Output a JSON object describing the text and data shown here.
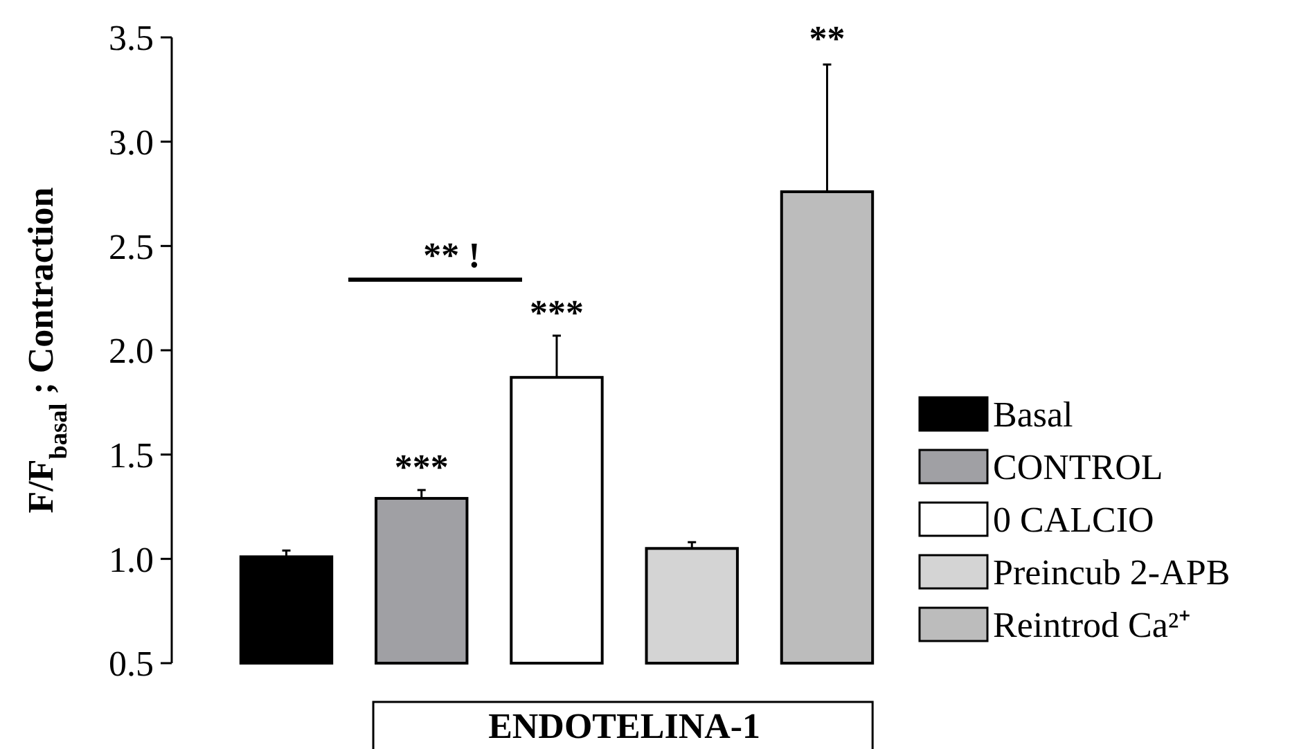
{
  "chart_data": {
    "type": "bar",
    "ylabel": "F/F$_{basal}$ ; Contraction",
    "categories": [
      null,
      null,
      null,
      null,
      null
    ],
    "stacked": true,
    "series": [
      {
        "name": "Basal",
        "color": "#000000",
        "values": [
          1.01,
          null,
          null,
          null,
          null
        ],
        "errors": [
          [
            1.01,
            1.04
          ],
          null,
          null,
          null,
          null
        ]
      },
      {
        "name": "CONTROL",
        "color": "#a0a0a4",
        "values": [
          null,
          1.29,
          null,
          null,
          null
        ],
        "errors": [
          null,
          [
            1.29,
            1.33
          ],
          null,
          null,
          null
        ]
      },
      {
        "name": "0 CALCIO",
        "color": "#ffffff",
        "values": [
          null,
          null,
          1.87,
          null,
          null
        ],
        "errors": [
          null,
          null,
          [
            1.87,
            2.07
          ],
          null,
          null
        ]
      },
      {
        "name": "Preincub 2-APB",
        "color": "#d4d4d4",
        "values": [
          null,
          null,
          null,
          1.05,
          null
        ],
        "errors": [
          null,
          null,
          null,
          [
            1.05,
            1.08
          ],
          null
        ]
      },
      {
        "name": "Reintrod Ca²⁺",
        "color": "#bcbcbc",
        "values": [
          null,
          null,
          null,
          null,
          2.76
        ],
        "errors": [
          null,
          null,
          null,
          null,
          [
            2.76,
            3.37
          ]
        ]
      }
    ],
    "ylim": [
      0.5,
      3.5
    ],
    "yticks": [
      {
        "value": 0.5,
        "label": "0.5"
      },
      {
        "value": 1.0,
        "label": "1.0"
      },
      {
        "value": 1.5,
        "label": "1.5"
      },
      {
        "value": 2.0,
        "label": "2.0"
      },
      {
        "value": 2.5,
        "label": "2.5"
      },
      {
        "value": 3.0,
        "label": "3.0"
      },
      {
        "value": 3.5,
        "label": "3.5"
      }
    ],
    "tick_labels": "y",
    "legend": "right",
    "annotations": [
      "***",
      "***",
      "**",
      "** !",
      "ENDOTELINA-1"
    ]
  }
}
